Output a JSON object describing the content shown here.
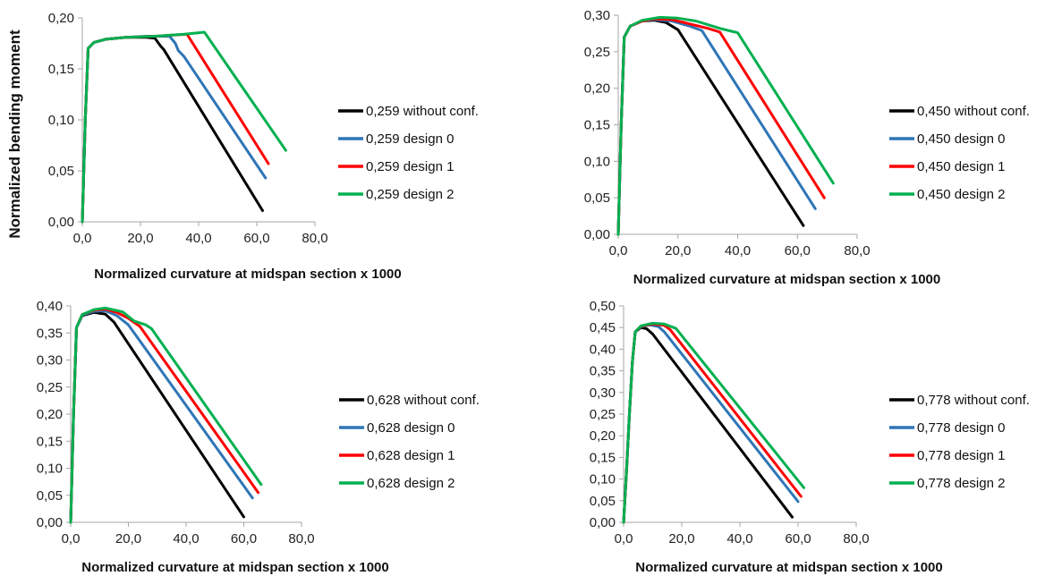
{
  "colors": {
    "without": "#000000",
    "design0": "#2e75b6",
    "design1": "#ff0000",
    "design2": "#00b050",
    "axis": "#a6a6a6"
  },
  "chart_data": [
    {
      "type": "line",
      "xlabel": "Normalized curvature at midspan section x 1000",
      "ylabel": "Normalized bending moment",
      "xlim": [
        0,
        80
      ],
      "ylim": [
        0,
        0.2
      ],
      "xticks": [
        "0,0",
        "20,0",
        "40,0",
        "60,0",
        "80,0"
      ],
      "yticks": [
        "0,00",
        "0,05",
        "0,10",
        "0,15",
        "0,20"
      ],
      "grid": false,
      "legend": "right",
      "series": [
        {
          "name": "0,259 without conf.",
          "x": [
            0,
            1,
            2,
            4,
            8,
            15,
            22,
            25,
            26,
            27,
            28,
            62
          ],
          "y": [
            0,
            0.1,
            0.17,
            0.176,
            0.179,
            0.181,
            0.181,
            0.18,
            0.176,
            0.172,
            0.169,
            0.011
          ]
        },
        {
          "name": "0,259 design 0",
          "x": [
            0,
            1,
            2,
            4,
            8,
            15,
            22,
            30,
            32,
            33,
            35,
            63
          ],
          "y": [
            0,
            0.1,
            0.17,
            0.176,
            0.179,
            0.181,
            0.182,
            0.182,
            0.175,
            0.168,
            0.162,
            0.043
          ]
        },
        {
          "name": "0,259 design 1",
          "x": [
            0,
            1,
            2,
            4,
            8,
            15,
            25,
            36,
            64
          ],
          "y": [
            0,
            0.1,
            0.17,
            0.176,
            0.179,
            0.181,
            0.182,
            0.184,
            0.057
          ]
        },
        {
          "name": "0,259 design 2",
          "x": [
            0,
            1,
            2,
            4,
            8,
            15,
            25,
            35,
            42,
            70
          ],
          "y": [
            0,
            0.1,
            0.17,
            0.176,
            0.179,
            0.181,
            0.182,
            0.184,
            0.186,
            0.07
          ]
        }
      ]
    },
    {
      "type": "line",
      "xlabel": "Normalized curvature at midspan section x 1000",
      "ylabel": "Normalized bending moment",
      "xlim": [
        0,
        80
      ],
      "ylim": [
        0,
        0.3
      ],
      "xticks": [
        "0,0",
        "20,0",
        "40,0",
        "60,0",
        "80,0"
      ],
      "yticks": [
        "0,00",
        "0,05",
        "0,10",
        "0,15",
        "0,20",
        "0,25",
        "0,30"
      ],
      "grid": false,
      "legend": "right",
      "series": [
        {
          "name": "0,450 without conf.",
          "x": [
            0,
            1,
            2,
            4,
            8,
            12,
            16,
            20,
            62
          ],
          "y": [
            0,
            0.15,
            0.27,
            0.285,
            0.292,
            0.293,
            0.29,
            0.28,
            0.012
          ]
        },
        {
          "name": "0,450 design 0",
          "x": [
            0,
            1,
            2,
            4,
            8,
            12,
            18,
            24,
            28,
            66
          ],
          "y": [
            0,
            0.15,
            0.27,
            0.285,
            0.292,
            0.294,
            0.292,
            0.285,
            0.279,
            0.035
          ]
        },
        {
          "name": "0,450 design 1",
          "x": [
            0,
            1,
            2,
            4,
            8,
            12,
            18,
            24,
            30,
            34,
            69
          ],
          "y": [
            0,
            0.15,
            0.27,
            0.285,
            0.292,
            0.295,
            0.294,
            0.288,
            0.282,
            0.277,
            0.05
          ]
        },
        {
          "name": "0,450 design 2",
          "x": [
            0,
            1,
            2,
            4,
            8,
            14,
            20,
            26,
            30,
            34,
            38,
            40,
            72
          ],
          "y": [
            0,
            0.15,
            0.27,
            0.285,
            0.293,
            0.297,
            0.296,
            0.292,
            0.287,
            0.282,
            0.278,
            0.276,
            0.07
          ]
        }
      ]
    },
    {
      "type": "line",
      "xlabel": "Normalized curvature at midspan section x 1000",
      "ylabel": "Normalized bending moment",
      "xlim": [
        0,
        80
      ],
      "ylim": [
        0,
        0.4
      ],
      "xticks": [
        "0,0",
        "20,0",
        "40,0",
        "60,0",
        "80,0"
      ],
      "yticks": [
        "0,00",
        "0,05",
        "0,10",
        "0,15",
        "0,20",
        "0,25",
        "0,30",
        "0,35",
        "0,40"
      ],
      "grid": false,
      "legend": "right",
      "series": [
        {
          "name": "0,628 without conf.",
          "x": [
            0,
            1,
            2,
            4,
            8,
            12,
            15,
            60
          ],
          "y": [
            0,
            0.2,
            0.36,
            0.382,
            0.388,
            0.385,
            0.37,
            0.01
          ]
        },
        {
          "name": "0,628 design 0",
          "x": [
            0,
            1,
            2,
            4,
            8,
            12,
            16,
            20,
            63
          ],
          "y": [
            0,
            0.2,
            0.36,
            0.383,
            0.39,
            0.391,
            0.382,
            0.365,
            0.045
          ]
        },
        {
          "name": "0,628 design 1",
          "x": [
            0,
            1,
            2,
            4,
            8,
            12,
            16,
            20,
            24,
            65
          ],
          "y": [
            0,
            0.2,
            0.36,
            0.384,
            0.392,
            0.394,
            0.388,
            0.377,
            0.362,
            0.055
          ]
        },
        {
          "name": "0,628 design 2",
          "x": [
            0,
            1,
            2,
            4,
            8,
            12,
            18,
            22,
            26,
            28,
            66
          ],
          "y": [
            0,
            0.2,
            0.36,
            0.384,
            0.393,
            0.396,
            0.389,
            0.372,
            0.365,
            0.358,
            0.07
          ]
        }
      ]
    },
    {
      "type": "line",
      "xlabel": "Normalized curvature at midspan section x 1000",
      "ylabel": "Normalized bending moment",
      "xlim": [
        0,
        80
      ],
      "ylim": [
        0,
        0.5
      ],
      "xticks": [
        "0,0",
        "20,0",
        "40,0",
        "60,0",
        "80,0"
      ],
      "yticks": [
        "0,00",
        "0,05",
        "0,10",
        "0,15",
        "0,20",
        "0,25",
        "0,30",
        "0,35",
        "0,40",
        "0,45",
        "0,50"
      ],
      "grid": false,
      "legend": "right",
      "series": [
        {
          "name": "0,778 without conf.",
          "x": [
            0,
            1,
            2,
            3,
            4,
            6,
            8,
            10,
            58
          ],
          "y": [
            0,
            0.12,
            0.25,
            0.37,
            0.44,
            0.45,
            0.447,
            0.435,
            0.012
          ]
        },
        {
          "name": "0,778 design 0",
          "x": [
            0,
            1,
            2,
            3,
            4,
            6,
            9,
            12,
            14,
            60
          ],
          "y": [
            0,
            0.12,
            0.25,
            0.37,
            0.44,
            0.452,
            0.456,
            0.452,
            0.44,
            0.048
          ]
        },
        {
          "name": "0,778 design 1",
          "x": [
            0,
            1,
            2,
            3,
            4,
            6,
            10,
            14,
            16,
            61
          ],
          "y": [
            0,
            0.12,
            0.25,
            0.37,
            0.44,
            0.453,
            0.458,
            0.455,
            0.445,
            0.06
          ]
        },
        {
          "name": "0,778 design 2",
          "x": [
            0,
            1,
            2,
            3,
            4,
            6,
            10,
            14,
            18,
            62
          ],
          "y": [
            0,
            0.12,
            0.25,
            0.37,
            0.44,
            0.454,
            0.46,
            0.458,
            0.448,
            0.08
          ]
        }
      ]
    }
  ]
}
